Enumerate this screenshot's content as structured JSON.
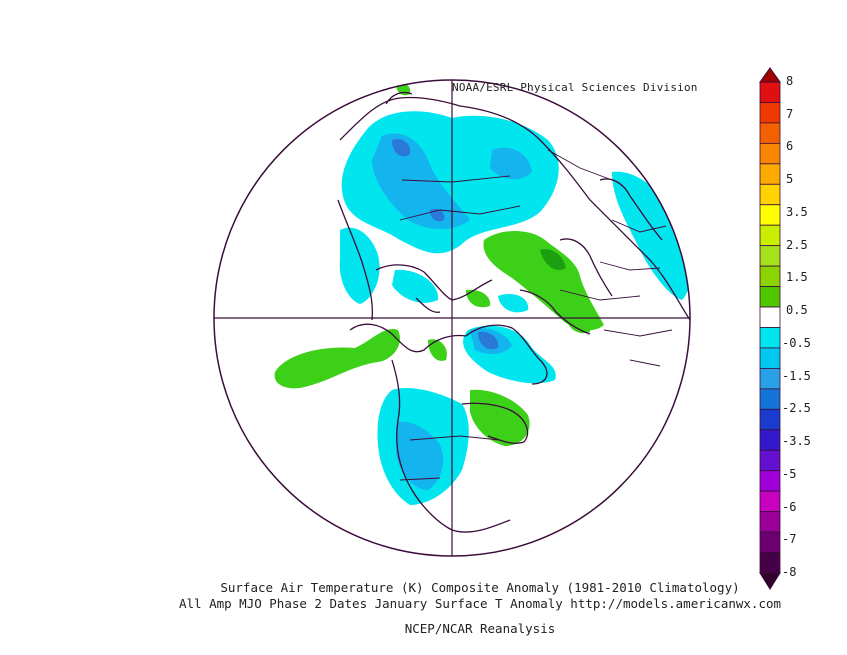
{
  "credit": "NOAA/ESRL Physical Sciences Division",
  "caption_line1": "Surface Air Temperature (K) Composite Anomaly (1981-2010 Climatology)",
  "caption_line2": "All Amp MJO Phase 2 Dates January Surface T Anomaly http://models.americanwx.com",
  "caption_line3": "NCEP/NCAR Reanalysis",
  "colorbar": {
    "labels": [
      "8",
      "7",
      "6",
      "5",
      "3.5",
      "2.5",
      "1.5",
      "0.5",
      "-0.5",
      "-1.5",
      "-2.5",
      "-3.5",
      "-5",
      "-6",
      "-7",
      "-8"
    ],
    "colors": [
      "#e01010",
      "#ee3a00",
      "#f36000",
      "#f88600",
      "#fcaa00",
      "#ffd200",
      "#ffff00",
      "#c8ee00",
      "#a6e21c",
      "#8cd400",
      "#50c800",
      "#ffffff",
      "#00e5ee",
      "#00c8f0",
      "#2aa0e8",
      "#1474d8",
      "#1a3ccc",
      "#3218c8",
      "#6410d0",
      "#a000d8",
      "#c800c0",
      "#9a0098",
      "#6c0070",
      "#450048"
    ],
    "arrow_top": "#a00000",
    "arrow_bottom": "#30002a"
  },
  "map_colors": {
    "outline": "#3a0d3a",
    "cold_light": "#00e5ee",
    "cold_mid": "#14b4ee",
    "cold_dark": "#2a78d8",
    "warm_light": "#3dd018",
    "warm_dark": "#1aa010"
  }
}
